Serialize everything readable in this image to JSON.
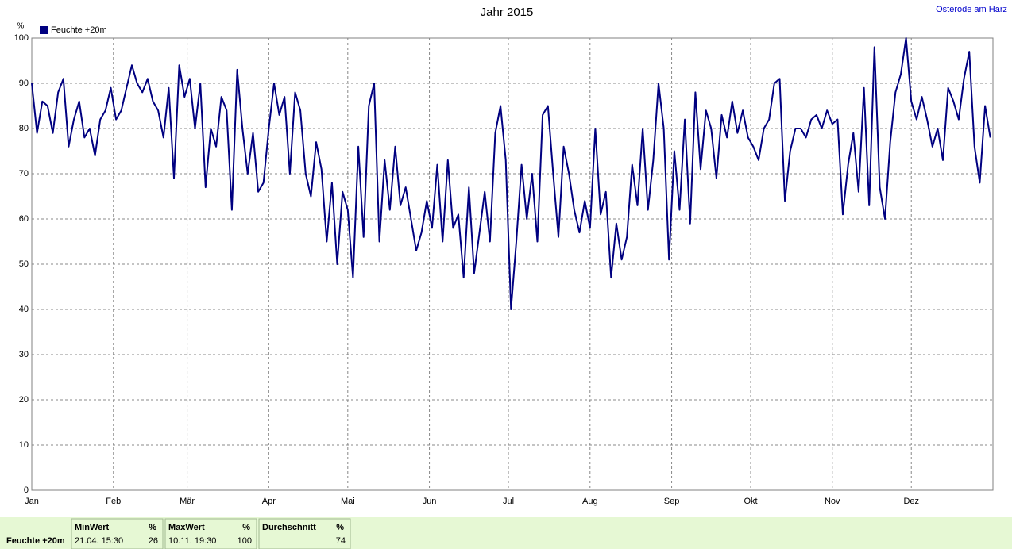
{
  "chart_data": {
    "type": "line",
    "title": "Jahr 2015",
    "location": "Osterode am Harz",
    "y_label": "%",
    "x": [
      0,
      2,
      4,
      6,
      8,
      10,
      12,
      14,
      16,
      18,
      20,
      22,
      24,
      26,
      28,
      30,
      32,
      34,
      36,
      38,
      40,
      42,
      44,
      46,
      48,
      50,
      52,
      54,
      56,
      58,
      60,
      62,
      64,
      66,
      68,
      70,
      72,
      74,
      76,
      78,
      80,
      82,
      84,
      86,
      88,
      90,
      92,
      94,
      96,
      98,
      100,
      102,
      104,
      106,
      108,
      110,
      112,
      114,
      116,
      118,
      120,
      122,
      124,
      126,
      128,
      130,
      132,
      134,
      136,
      138,
      140,
      142,
      144,
      146,
      148,
      150,
      152,
      154,
      156,
      158,
      160,
      162,
      164,
      166,
      168,
      170,
      172,
      174,
      176,
      178,
      180,
      182,
      184,
      186,
      188,
      190,
      192,
      194,
      196,
      198,
      200,
      202,
      204,
      206,
      208,
      210,
      212,
      214,
      216,
      218,
      220,
      222,
      224,
      226,
      228,
      230,
      232,
      234,
      236,
      238,
      240,
      242,
      244,
      246,
      248,
      250,
      252,
      254,
      256,
      258,
      260,
      262,
      264,
      266,
      268,
      270,
      272,
      274,
      276,
      278,
      280,
      282,
      284,
      286,
      288,
      290,
      292,
      294,
      296,
      298,
      300,
      302,
      304,
      306,
      308,
      310,
      312,
      314,
      316,
      318,
      320,
      322,
      324,
      326,
      328,
      330,
      332,
      334,
      336,
      338,
      340,
      342,
      344,
      346,
      348,
      350,
      352,
      354,
      356,
      358,
      360,
      362,
      364
    ],
    "series": [
      {
        "name": "Feuchte +20m",
        "color": "#000080",
        "values": [
          90,
          79,
          86,
          85,
          79,
          88,
          91,
          76,
          82,
          86,
          78,
          80,
          74,
          82,
          84,
          89,
          82,
          84,
          89,
          94,
          90,
          88,
          91,
          86,
          84,
          78,
          89,
          69,
          94,
          87,
          91,
          80,
          90,
          67,
          80,
          76,
          87,
          84,
          62,
          93,
          80,
          70,
          79,
          66,
          68,
          80,
          90,
          83,
          87,
          70,
          88,
          84,
          70,
          65,
          77,
          71,
          55,
          68,
          50,
          66,
          62,
          47,
          76,
          56,
          85,
          90,
          55,
          73,
          62,
          76,
          63,
          67,
          60,
          53,
          57,
          64,
          58,
          72,
          55,
          73,
          58,
          61,
          47,
          67,
          48,
          57,
          66,
          55,
          79,
          85,
          73,
          40,
          55,
          72,
          60,
          70,
          55,
          83,
          85,
          70,
          56,
          76,
          70,
          62,
          57,
          64,
          58,
          80,
          61,
          66,
          47,
          59,
          51,
          56,
          72,
          63,
          80,
          62,
          73,
          90,
          80,
          51,
          75,
          62,
          82,
          59,
          88,
          71,
          84,
          80,
          69,
          83,
          78,
          86,
          79,
          84,
          78,
          76,
          73,
          80,
          82,
          90,
          91,
          64,
          75,
          80,
          80,
          78,
          82,
          83,
          80,
          84,
          81,
          82,
          61,
          72,
          79,
          66,
          89,
          63,
          98,
          67,
          60,
          77,
          88,
          92,
          100,
          86,
          82,
          87,
          82,
          76,
          80,
          73,
          89,
          86,
          82,
          91,
          97,
          76,
          68,
          85,
          78
        ]
      }
    ],
    "xlim": [
      0,
      365
    ],
    "xticks": [
      {
        "value": 0,
        "label": "Jan"
      },
      {
        "value": 31,
        "label": "Feb"
      },
      {
        "value": 59,
        "label": "Mär"
      },
      {
        "value": 90,
        "label": "Apr"
      },
      {
        "value": 120,
        "label": "Mai"
      },
      {
        "value": 151,
        "label": "Jun"
      },
      {
        "value": 181,
        "label": "Jul"
      },
      {
        "value": 212,
        "label": "Aug"
      },
      {
        "value": 243,
        "label": "Sep"
      },
      {
        "value": 273,
        "label": "Okt"
      },
      {
        "value": 304,
        "label": "Nov"
      },
      {
        "value": 334,
        "label": "Dez"
      }
    ],
    "ylim": [
      0,
      100
    ],
    "yticks": [
      0,
      10,
      20,
      30,
      40,
      50,
      60,
      70,
      80,
      90,
      100
    ],
    "grid": true
  },
  "stats": {
    "row_label": "Feuchte +20m",
    "columns": [
      {
        "header": "MinWert",
        "unit": "%",
        "time": "21.04.  15:30",
        "value": 26
      },
      {
        "header": "MaxWert",
        "unit": "%",
        "time": "10.11.  19:30",
        "value": 100
      },
      {
        "header": "Durchschnitt",
        "unit": "%",
        "value": 74
      }
    ]
  }
}
